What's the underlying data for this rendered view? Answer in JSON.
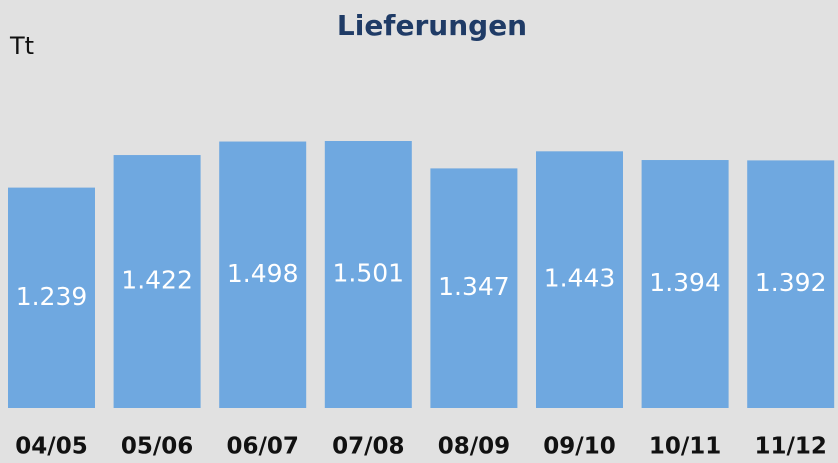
{
  "chart_data": {
    "type": "bar",
    "title": "Lieferungen",
    "unit": "Tt",
    "categories": [
      "04/05",
      "05/06",
      "06/07",
      "07/08",
      "08/09",
      "09/10",
      "10/11",
      "11/12"
    ],
    "values": [
      1239,
      1422,
      1498,
      1501,
      1347,
      1443,
      1394,
      1392
    ],
    "value_labels": [
      "1.239",
      "1.422",
      "1.498",
      "1.501",
      "1.347",
      "1.443",
      "1.394",
      "1.392"
    ],
    "color": "#6fa8e0"
  }
}
